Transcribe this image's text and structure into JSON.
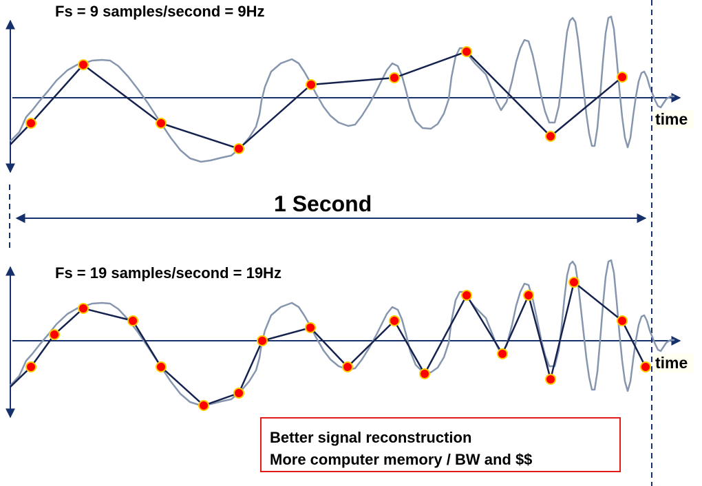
{
  "top_panel": {
    "title": "Fs = 9 samples/second = 9Hz",
    "time_label": "time"
  },
  "duration_label": "1 Second",
  "bottom_panel": {
    "title": "Fs = 19 samples/second = 19Hz",
    "time_label": "time"
  },
  "note": {
    "line1": "Better signal reconstruction",
    "line2": "More computer memory  / BW and $$"
  },
  "colors": {
    "analog_signal": "#8696ae",
    "sampled_signal": "#15224e",
    "axis": "#15306a",
    "sample_marker": "#ff0000",
    "sample_marker_ring": "#ffcc00",
    "note_border": "#e01919"
  }
}
